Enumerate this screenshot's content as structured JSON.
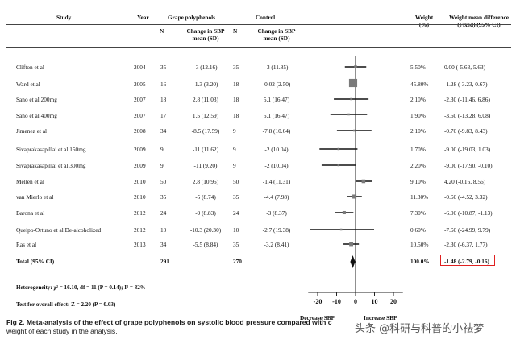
{
  "headers": {
    "study": "Study",
    "year": "Year",
    "grape": "Grape polyphenols",
    "control": "Control",
    "n": "N",
    "change": "Change in SBP mean (SD)",
    "change_l1": "Change in SBP",
    "change_l2": "mean (SD)",
    "weight_l1": "Weight",
    "weight_l2": "(%)",
    "wmd_l1": "Weight mean difference",
    "wmd_l2": "(Fixed) (95% CI)"
  },
  "studies": [
    {
      "study": "Clifton et al",
      "year": "2004",
      "gn": "35",
      "gchange": "-3 (12.16)",
      "cn": "35",
      "cchange": "-3 (11.85)",
      "weight": "5.50%",
      "wmd": "0.00 (-5.63, 5.63)"
    },
    {
      "study": "Ward et al",
      "year": "2005",
      "gn": "16",
      "gchange": "-1.3 (3.20)",
      "cn": "18",
      "cchange": "-0.02 (2.50)",
      "weight": "45.80%",
      "wmd": "-1.28 (-3.23, 0.67)"
    },
    {
      "study": "Sano et al 200mg",
      "year": "2007",
      "gn": "18",
      "gchange": "2.8 (11.03)",
      "cn": "18",
      "cchange": "5.1 (16.47)",
      "weight": "2.10%",
      "wmd": "-2.30 (-11.46, 6.86)"
    },
    {
      "study": "Sano et al 400mg",
      "year": "2007",
      "gn": "17",
      "gchange": "1.5 (12.59)",
      "cn": "18",
      "cchange": "5.1 (16.47)",
      "weight": "1.90%",
      "wmd": "-3.60 (-13.28, 6.08)"
    },
    {
      "study": "Jimenez et al",
      "year": "2008",
      "gn": "34",
      "gchange": "-8.5 (17.59)",
      "cn": "9",
      "cchange": "-7.8 (10.64)",
      "weight": "2.10%",
      "wmd": "-0.70 (-9.83, 8.43)"
    },
    {
      "study": "Sivaprakasapillai et al 150mg",
      "year": "2009",
      "gn": "9",
      "gchange": "-11 (11.62)",
      "cn": "9",
      "cchange": "-2 (10.04)",
      "weight": "1.70%",
      "wmd": "-9.00 (-19.03, 1.03)"
    },
    {
      "study": "Sivaprakasapillai et al 300mg",
      "year": "2009",
      "gn": "9",
      "gchange": "-11 (9.20)",
      "cn": "9",
      "cchange": "-2 (10.04)",
      "weight": "2.20%",
      "wmd": "-9.00 (-17.90, -0.10)"
    },
    {
      "study": "Mellen et al",
      "year": "2010",
      "gn": "50",
      "gchange": "2.8 (10.95)",
      "cn": "50",
      "cchange": "-1.4 (11.31)",
      "weight": "9.10%",
      "wmd": "4.20 (-0.16, 8.56)"
    },
    {
      "study": "van Mierlo et al",
      "year": "2010",
      "gn": "35",
      "gchange": "-5 (8.74)",
      "cn": "35",
      "cchange": "-4.4 (7.98)",
      "weight": "11.30%",
      "wmd": "-0.60 (-4.52, 3.32)"
    },
    {
      "study": "Barona et al",
      "year": "2012",
      "gn": "24",
      "gchange": "-9 (8.83)",
      "cn": "24",
      "cchange": "-3 (8.37)",
      "weight": "7.30%",
      "wmd": "-6.00 (-10.87, -1.13)"
    },
    {
      "study": "Queipo-Ortuno et al De-alcoholized",
      "year": "2012",
      "gn": "10",
      "gchange": "-10.3 (20.30)",
      "cn": "10",
      "cchange": "-2.7 (19.38)",
      "weight": "0.60%",
      "wmd": "-7.60 (-24.99, 9.79)"
    },
    {
      "study": "Ras et al",
      "year": "2013",
      "gn": "34",
      "gchange": "-5.5 (8.84)",
      "cn": "35",
      "cchange": "-3.2 (8.41)",
      "weight": "10.50%",
      "wmd": "-2.30 (-6.37, 1.77)"
    }
  ],
  "total": {
    "study": "Total (95% CI)",
    "gn": "291",
    "cn": "270",
    "weight": "100.0%",
    "wmd": "-1.48 (-2.79, -0.16)"
  },
  "heterogeneity_text": "Heterogeneity: χ² = 16.10, df = 11 (P = 0.14); I² = 32%",
  "overall_effect_text": "Test for overall effect: Z = 2.20 (P = 0.03)",
  "axis_labels": {
    "left": "Decrease SBP",
    "right": "Increase SBP"
  },
  "caption": "Fig 2. Meta-analysis of the effect of grape polyphenols on systolic blood pressure compared with c... weight of each study in the analysis.",
  "caption_line1": "Fig 2. Meta-analysis of the effect of grape polyphenols on systolic blood pressure compared with c",
  "caption_line2": "weight of each study in the analysis.",
  "watermark": "头条 @科研与科普的小祛梦",
  "colors": {
    "highlight_box": "#e02020",
    "square": "#7a7a7a",
    "line": "#111111"
  },
  "chart_data": {
    "type": "forest",
    "xlim": [
      -25,
      25
    ],
    "xticks": [
      -20,
      -10,
      0,
      10,
      20
    ],
    "reference_line": 0,
    "labels": [
      "Clifton et al",
      "Ward et al",
      "Sano et al 200mg",
      "Sano et al 400mg",
      "Jimenez et al",
      "Sivaprakasapillai et al 150mg",
      "Sivaprakasapillai et al 300mg",
      "Mellen et al",
      "van Mierlo et al",
      "Barona et al",
      "Queipo-Ortuno et al De-alcoholized",
      "Ras et al"
    ],
    "estimates": [
      0.0,
      -1.28,
      -2.3,
      -3.6,
      -0.7,
      -9.0,
      -9.0,
      4.2,
      -0.6,
      -6.0,
      -7.6,
      -2.3
    ],
    "ci_low": [
      -5.63,
      -3.23,
      -11.46,
      -13.28,
      -9.83,
      -19.03,
      -17.9,
      -0.16,
      -4.52,
      -10.87,
      -24.99,
      -6.37
    ],
    "ci_high": [
      5.63,
      0.67,
      6.86,
      6.08,
      8.43,
      1.03,
      -0.1,
      8.56,
      3.32,
      -1.13,
      9.79,
      1.77
    ],
    "weights": [
      5.5,
      45.8,
      2.1,
      1.9,
      2.1,
      1.7,
      2.2,
      9.1,
      11.3,
      7.3,
      0.6,
      10.5
    ],
    "pooled": {
      "estimate": -1.48,
      "ci_low": -2.79,
      "ci_high": -0.16
    }
  }
}
